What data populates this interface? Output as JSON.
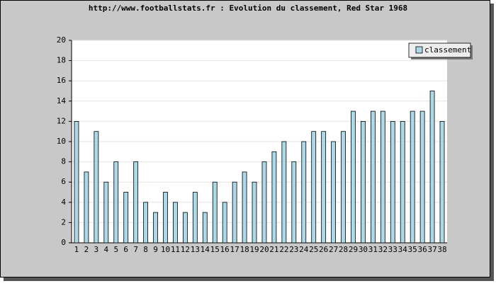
{
  "chart_data": {
    "type": "bar",
    "title": "http://www.footballstats.fr : Evolution du classement, Red Star 1968",
    "categories": [
      "1",
      "2",
      "3",
      "4",
      "5",
      "6",
      "7",
      "8",
      "9",
      "10",
      "11",
      "12",
      "13",
      "14",
      "15",
      "16",
      "17",
      "18",
      "19",
      "20",
      "21",
      "22",
      "23",
      "24",
      "25",
      "26",
      "27",
      "28",
      "29",
      "30",
      "31",
      "32",
      "33",
      "34",
      "35",
      "36",
      "37",
      "38"
    ],
    "series": [
      {
        "name": "classement",
        "color": "#add8e6",
        "values": [
          12,
          7,
          11,
          6,
          8,
          5,
          8,
          4,
          3,
          5,
          4,
          3,
          5,
          3,
          6,
          4,
          6,
          7,
          6,
          8,
          9,
          10,
          8,
          10,
          11,
          11,
          10,
          11,
          13,
          12,
          13,
          13,
          12,
          12,
          13,
          13,
          15,
          12
        ]
      }
    ],
    "ylim": [
      0,
      20
    ],
    "yticks": [
      0,
      2,
      4,
      6,
      8,
      10,
      12,
      14,
      16,
      18,
      20
    ],
    "grid": true,
    "legend": "top-right"
  }
}
